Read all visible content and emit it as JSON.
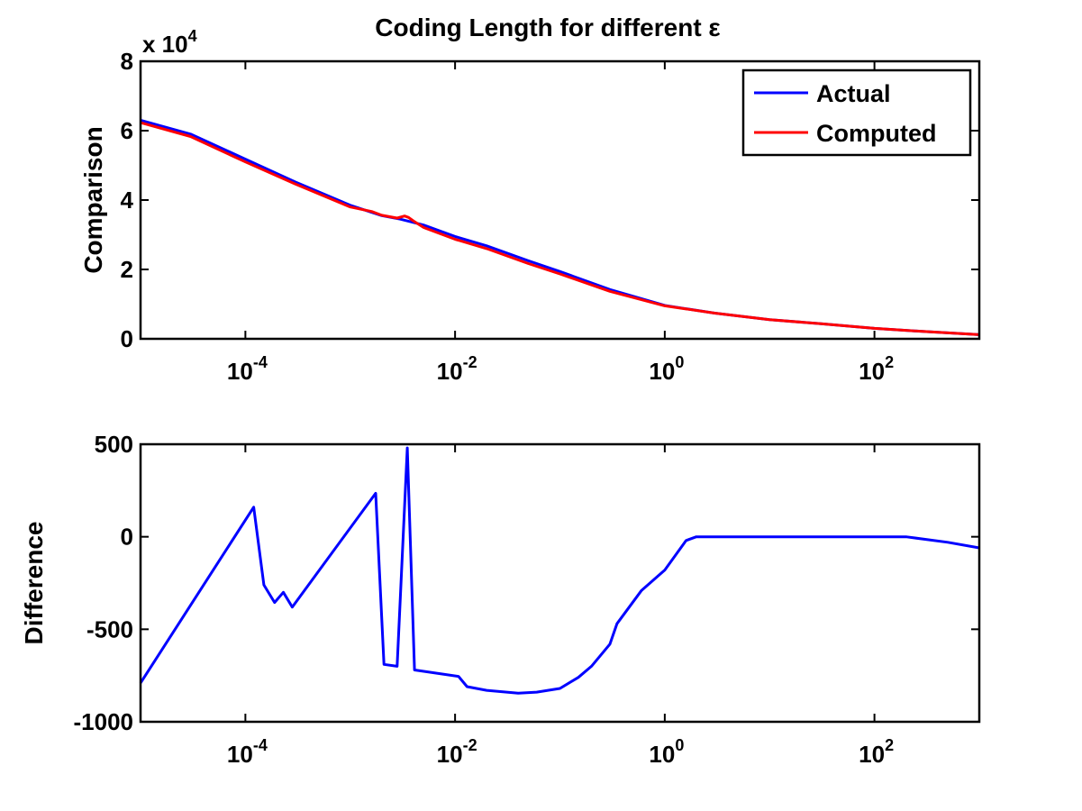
{
  "title": "Coding Length for different ε",
  "colors": {
    "actual": "#0000ff",
    "computed": "#ff0000",
    "axis": "#000000",
    "background": "#ffffff"
  },
  "chart_data": [
    {
      "type": "line",
      "title": "Coding Length for different ε",
      "ylabel": "Comparison",
      "xlabel": "",
      "xscale": "log",
      "xlim": [
        1e-05,
        1000
      ],
      "ylim": [
        0,
        80000
      ],
      "y_exponent_label": "x 10",
      "y_exponent_sup": "4",
      "xticks": [
        0.0001,
        0.01,
        1,
        100
      ],
      "xtick_labels": [
        {
          "base": "10",
          "exp": "-4"
        },
        {
          "base": "10",
          "exp": "-2"
        },
        {
          "base": "10",
          "exp": "0"
        },
        {
          "base": "10",
          "exp": "2"
        }
      ],
      "yticks": [
        0,
        20000,
        40000,
        60000,
        80000
      ],
      "ytick_labels": [
        "0",
        "2",
        "4",
        "6",
        "8"
      ],
      "grid": false,
      "legend_position": "top-right",
      "series": [
        {
          "name": "Actual",
          "color": "#0000ff",
          "x": [
            1e-05,
            3e-05,
            0.0001,
            0.0003,
            0.001,
            0.002,
            0.003,
            0.005,
            0.01,
            0.02,
            0.05,
            0.1,
            0.3,
            1,
            3,
            10,
            30,
            100,
            300,
            1000
          ],
          "y": [
            63000,
            59000,
            51800,
            45200,
            38500,
            35500,
            34500,
            32800,
            29500,
            26800,
            22500,
            19400,
            14200,
            9600,
            7400,
            5500,
            4400,
            3000,
            2100,
            1200
          ]
        },
        {
          "name": "Computed",
          "color": "#ff0000",
          "x": [
            1e-05,
            3e-05,
            0.0001,
            0.0003,
            0.001,
            0.0016,
            0.002,
            0.0028,
            0.0033,
            0.0036,
            0.004,
            0.005,
            0.01,
            0.02,
            0.05,
            0.1,
            0.3,
            1,
            3,
            10,
            30,
            100,
            300,
            1000
          ],
          "y": [
            62300,
            58300,
            51000,
            44600,
            38000,
            36700,
            35600,
            34800,
            35400,
            35000,
            34000,
            32100,
            28700,
            26000,
            21700,
            18700,
            13700,
            9500,
            7400,
            5500,
            4400,
            3000,
            2100,
            1200
          ]
        }
      ]
    },
    {
      "type": "line",
      "title": "",
      "ylabel": "Difference",
      "xlabel": "",
      "xscale": "log",
      "xlim": [
        1e-05,
        1000
      ],
      "ylim": [
        -1000,
        500
      ],
      "xticks": [
        0.0001,
        0.01,
        1,
        100
      ],
      "xtick_labels": [
        {
          "base": "10",
          "exp": "-4"
        },
        {
          "base": "10",
          "exp": "-2"
        },
        {
          "base": "10",
          "exp": "0"
        },
        {
          "base": "10",
          "exp": "2"
        }
      ],
      "yticks": [
        -1000,
        -500,
        0,
        500
      ],
      "ytick_labels": [
        "-1000",
        "-500",
        "0",
        "500"
      ],
      "grid": false,
      "series": [
        {
          "color": "#0000ff",
          "x": [
            1e-05,
            0.00012,
            0.00015,
            0.00019,
            0.00023,
            0.00028,
            0.00175,
            0.0021,
            0.0028,
            0.0035,
            0.0041,
            0.0108,
            0.013,
            0.02,
            0.04,
            0.06,
            0.1,
            0.15,
            0.2,
            0.3,
            0.35,
            0.6,
            1,
            1.6,
            2,
            200,
            500,
            1000
          ],
          "y": [
            -790,
            160,
            -260,
            -355,
            -300,
            -380,
            235,
            -690,
            -700,
            480,
            -720,
            -755,
            -810,
            -830,
            -845,
            -840,
            -820,
            -760,
            -700,
            -580,
            -470,
            -290,
            -180,
            -20,
            0,
            0,
            -30,
            -60
          ]
        }
      ]
    }
  ]
}
